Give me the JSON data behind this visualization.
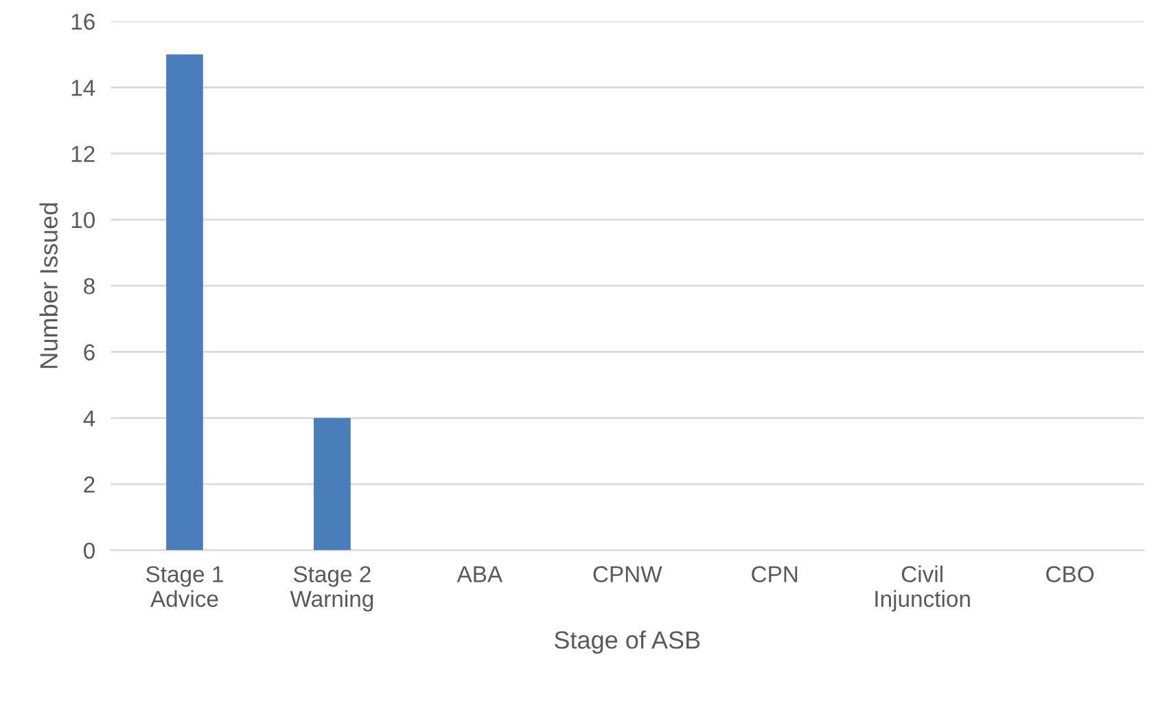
{
  "chart_data": {
    "type": "bar",
    "xlabel": "Stage of ASB",
    "ylabel": "Number Issued",
    "categories": [
      "Stage 1\nAdvice",
      "Stage 2\nWarning",
      "ABA",
      "CPNW",
      "CPN",
      "Civil\nInjunction",
      "CBO"
    ],
    "values": [
      15,
      4,
      0,
      0,
      0,
      0,
      0
    ],
    "color": "#4a7ebb",
    "ylim": [
      0,
      16
    ],
    "yticks": [
      0,
      2,
      4,
      6,
      8,
      10,
      12,
      14,
      16
    ],
    "grid": "y"
  }
}
